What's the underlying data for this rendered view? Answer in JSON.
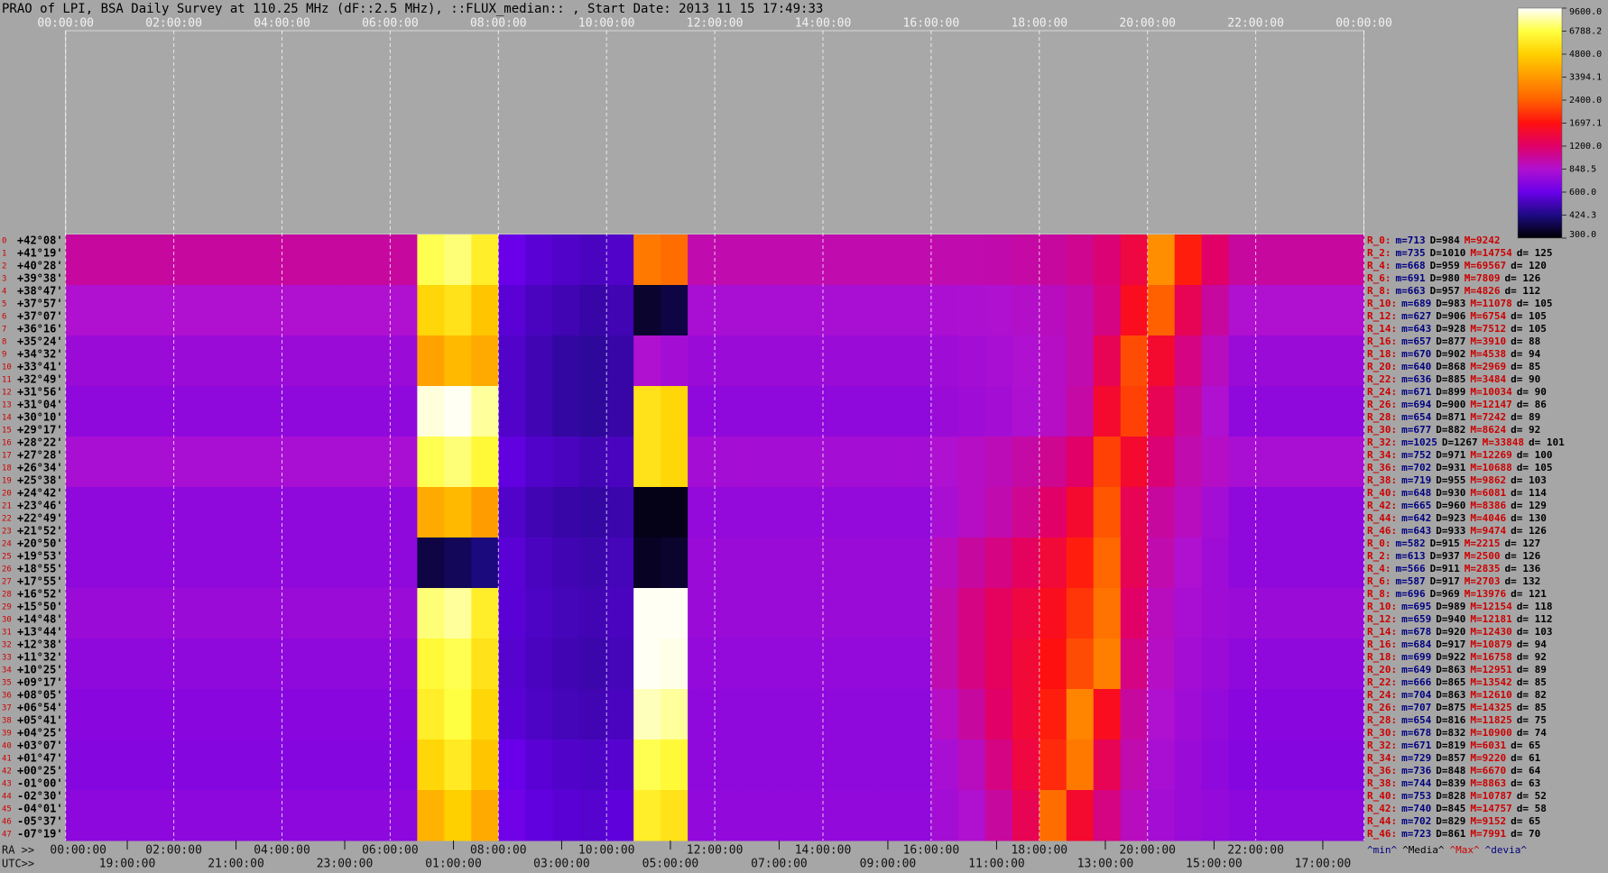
{
  "chart_data": {
    "type": "heatmap",
    "title": "PRAO of LPI, BSA Daily Survey at 110.25 MHz (dF::2.5 MHz), ::FLUX_median:: , Start Date: 2013 11 15 17:49:33",
    "xlim": [
      0,
      24
    ],
    "xticks": [
      {
        "value": 0,
        "label": "00:00:00"
      },
      {
        "value": 2,
        "label": "02:00:00"
      },
      {
        "value": 4,
        "label": "04:00:00"
      },
      {
        "value": 6,
        "label": "06:00:00"
      },
      {
        "value": 8,
        "label": "08:00:00"
      },
      {
        "value": 10,
        "label": "10:00:00"
      },
      {
        "value": 12,
        "label": "12:00:00"
      },
      {
        "value": 14,
        "label": "14:00:00"
      },
      {
        "value": 16,
        "label": "16:00:00"
      },
      {
        "value": 18,
        "label": "18:00:00"
      },
      {
        "value": 20,
        "label": "20:00:00"
      },
      {
        "value": 22,
        "label": "22:00:00"
      },
      {
        "value": 24,
        "label": "00:00:00"
      }
    ],
    "grid": true,
    "ra_label": "RA >>",
    "ra_ticks": [
      {
        "value": 0,
        "label": "00:00:00"
      },
      {
        "value": 2,
        "label": "02:00:00"
      },
      {
        "value": 4,
        "label": "04:00:00"
      },
      {
        "value": 6,
        "label": "06:00:00"
      },
      {
        "value": 8,
        "label": "08:00:00"
      },
      {
        "value": 10,
        "label": "10:00:00"
      },
      {
        "value": 12,
        "label": "12:00:00"
      },
      {
        "value": 14,
        "label": "14:00:00"
      },
      {
        "value": 16,
        "label": "16:00:00"
      },
      {
        "value": 18,
        "label": "18:00:00"
      },
      {
        "value": 20,
        "label": "20:00:00"
      },
      {
        "value": 22,
        "label": "22:00:00"
      }
    ],
    "utc_label": "UTC>>",
    "utc_ticks": [
      {
        "value": 1.14,
        "label": "19:00:00"
      },
      {
        "value": 3.15,
        "label": "21:00:00"
      },
      {
        "value": 5.16,
        "label": "23:00:00"
      },
      {
        "value": 7.17,
        "label": "01:00:00"
      },
      {
        "value": 9.17,
        "label": "03:00:00"
      },
      {
        "value": 11.18,
        "label": "05:00:00"
      },
      {
        "value": 13.19,
        "label": "07:00:00"
      },
      {
        "value": 15.2,
        "label": "09:00:00"
      },
      {
        "value": 17.21,
        "label": "11:00:00"
      },
      {
        "value": 19.22,
        "label": "13:00:00"
      },
      {
        "value": 21.23,
        "label": "15:00:00"
      },
      {
        "value": 23.24,
        "label": "17:00:00"
      }
    ],
    "rows": [
      [
        "0",
        "+42°08'"
      ],
      [
        "1",
        "+41°19'"
      ],
      [
        "2",
        "+40°28'"
      ],
      [
        "3",
        "+39°38'"
      ],
      [
        "4",
        "+38°47'"
      ],
      [
        "5",
        "+37°57'"
      ],
      [
        "6",
        "+37°07'"
      ],
      [
        "7",
        "+36°16'"
      ],
      [
        "8",
        "+35°24'"
      ],
      [
        "9",
        "+34°32'"
      ],
      [
        "10",
        "+33°41'"
      ],
      [
        "11",
        "+32°49'"
      ],
      [
        "12",
        "+31°56'"
      ],
      [
        "13",
        "+31°04'"
      ],
      [
        "14",
        "+30°10'"
      ],
      [
        "15",
        "+29°17'"
      ],
      [
        "16",
        "+28°22'"
      ],
      [
        "17",
        "+27°28'"
      ],
      [
        "18",
        "+26°34'"
      ],
      [
        "19",
        "+25°38'"
      ],
      [
        "20",
        "+24°42'"
      ],
      [
        "21",
        "+23°46'"
      ],
      [
        "22",
        "+22°49'"
      ],
      [
        "23",
        "+21°52'"
      ],
      [
        "24",
        "+20°50'"
      ],
      [
        "25",
        "+19°53'"
      ],
      [
        "26",
        "+18°55'"
      ],
      [
        "27",
        "+17°55'"
      ],
      [
        "28",
        "+16°52'"
      ],
      [
        "29",
        "+15°50'"
      ],
      [
        "30",
        "+14°48'"
      ],
      [
        "31",
        "+13°44'"
      ],
      [
        "32",
        "+12°38'"
      ],
      [
        "33",
        "+11°32'"
      ],
      [
        "34",
        "+10°25'"
      ],
      [
        "35",
        "+09°17'"
      ],
      [
        "36",
        "+08°05'"
      ],
      [
        "37",
        "+06°54'"
      ],
      [
        "38",
        "+05°41'"
      ],
      [
        "39",
        "+04°25'"
      ],
      [
        "40",
        "+03°07'"
      ],
      [
        "41",
        "+01°47'"
      ],
      [
        "42",
        "+00°25'"
      ],
      [
        "43",
        "-01°00'"
      ],
      [
        "44",
        "-02°30'"
      ],
      [
        "45",
        "-04°01'"
      ],
      [
        "46",
        "-05°37'"
      ],
      [
        "47",
        "-07°19'"
      ]
    ],
    "values": [
      [
        1000,
        1000,
        1000,
        1000,
        1000,
        1000,
        1000,
        1000,
        1000,
        1000,
        1000,
        1000,
        1000,
        7000,
        7500,
        6000,
        600,
        560,
        540,
        520,
        540,
        2800,
        2600,
        950,
        950,
        950,
        950,
        950,
        950,
        950,
        950,
        950,
        950,
        950,
        960,
        980,
        1000,
        1050,
        1150,
        1400,
        3200,
        1800,
        1200,
        1000,
        1000,
        1000,
        1000,
        1000
      ],
      [
        850,
        850,
        850,
        850,
        850,
        850,
        850,
        850,
        850,
        850,
        850,
        850,
        850,
        5000,
        5500,
        4500,
        560,
        520,
        500,
        480,
        500,
        340,
        360,
        820,
        820,
        820,
        820,
        820,
        820,
        820,
        820,
        820,
        830,
        840,
        850,
        870,
        900,
        950,
        1100,
        1600,
        2400,
        1300,
        1000,
        850,
        850,
        850,
        850,
        850
      ],
      [
        760,
        760,
        760,
        760,
        760,
        760,
        760,
        760,
        760,
        760,
        760,
        760,
        760,
        3600,
        4200,
        3800,
        540,
        500,
        470,
        460,
        480,
        850,
        800,
        760,
        760,
        760,
        760,
        760,
        760,
        760,
        760,
        760,
        780,
        800,
        820,
        850,
        880,
        950,
        1300,
        2200,
        1500,
        1100,
        900,
        760,
        760,
        760,
        760,
        760
      ],
      [
        720,
        720,
        720,
        720,
        720,
        720,
        720,
        720,
        720,
        720,
        720,
        720,
        720,
        9000,
        9400,
        8000,
        540,
        500,
        470,
        460,
        480,
        5500,
        5000,
        720,
        720,
        720,
        720,
        720,
        720,
        720,
        720,
        720,
        760,
        780,
        800,
        840,
        880,
        980,
        1500,
        2100,
        1300,
        1000,
        850,
        720,
        720,
        720,
        720,
        720
      ],
      [
        820,
        820,
        820,
        820,
        820,
        820,
        820,
        820,
        820,
        820,
        820,
        820,
        820,
        7000,
        7500,
        6500,
        580,
        540,
        520,
        500,
        520,
        5500,
        5000,
        800,
        800,
        800,
        800,
        800,
        800,
        800,
        800,
        800,
        850,
        880,
        920,
        980,
        1050,
        1200,
        2100,
        1500,
        1150,
        950,
        880,
        820,
        820,
        820,
        820,
        820
      ],
      [
        720,
        720,
        720,
        720,
        720,
        720,
        720,
        720,
        720,
        720,
        720,
        720,
        720,
        3800,
        4200,
        3500,
        540,
        500,
        480,
        470,
        490,
        320,
        320,
        740,
        740,
        740,
        740,
        740,
        740,
        740,
        740,
        740,
        820,
        880,
        950,
        1050,
        1200,
        1500,
        2300,
        1300,
        1000,
        900,
        800,
        720,
        720,
        720,
        720,
        720
      ],
      [
        720,
        720,
        720,
        720,
        720,
        720,
        720,
        720,
        720,
        720,
        720,
        720,
        720,
        360,
        380,
        420,
        560,
        520,
        500,
        490,
        510,
        330,
        340,
        760,
        760,
        760,
        760,
        760,
        760,
        760,
        760,
        760,
        900,
        1000,
        1100,
        1250,
        1450,
        1800,
        2500,
        1300,
        950,
        850,
        780,
        720,
        720,
        720,
        720,
        720
      ],
      [
        760,
        760,
        760,
        760,
        760,
        760,
        760,
        760,
        760,
        760,
        760,
        760,
        760,
        7500,
        8000,
        6000,
        560,
        530,
        510,
        500,
        520,
        9400,
        9400,
        760,
        760,
        760,
        760,
        760,
        760,
        760,
        760,
        760,
        950,
        1100,
        1250,
        1400,
        1600,
        2000,
        2700,
        1200,
        900,
        820,
        780,
        760,
        760,
        760,
        760,
        760
      ],
      [
        720,
        720,
        720,
        720,
        720,
        720,
        720,
        720,
        720,
        720,
        720,
        720,
        720,
        6500,
        7000,
        5500,
        550,
        520,
        500,
        490,
        510,
        9400,
        9200,
        740,
        740,
        740,
        740,
        740,
        740,
        740,
        740,
        740,
        950,
        1100,
        1250,
        1450,
        1700,
        2200,
        2900,
        1100,
        880,
        800,
        760,
        720,
        720,
        720,
        720,
        720
      ],
      [
        700,
        700,
        700,
        700,
        700,
        700,
        700,
        700,
        700,
        700,
        700,
        700,
        700,
        6000,
        6800,
        5000,
        560,
        530,
        510,
        500,
        520,
        8500,
        8000,
        720,
        720,
        720,
        720,
        720,
        720,
        720,
        720,
        720,
        880,
        1000,
        1200,
        1450,
        1800,
        3000,
        1600,
        1000,
        850,
        780,
        740,
        700,
        700,
        700,
        700,
        700
      ],
      [
        690,
        690,
        690,
        690,
        690,
        690,
        690,
        690,
        690,
        690,
        690,
        690,
        690,
        5000,
        5800,
        4500,
        600,
        560,
        540,
        530,
        550,
        7000,
        6500,
        720,
        720,
        720,
        720,
        720,
        720,
        720,
        720,
        720,
        820,
        900,
        1100,
        1400,
        1900,
        2800,
        1300,
        950,
        820,
        760,
        720,
        690,
        690,
        690,
        690,
        690
      ],
      [
        710,
        710,
        710,
        710,
        710,
        710,
        710,
        710,
        710,
        710,
        710,
        710,
        710,
        4000,
        4800,
        3800,
        620,
        580,
        560,
        550,
        570,
        6000,
        5500,
        730,
        730,
        730,
        730,
        730,
        730,
        730,
        730,
        730,
        800,
        850,
        1000,
        1300,
        2600,
        1500,
        1100,
        900,
        800,
        760,
        740,
        710,
        710,
        710,
        710,
        710
      ]
    ],
    "clim": [
      300,
      9600
    ],
    "log_scale": true,
    "colormap": [
      "#000000",
      "#1c0a82",
      "#6a00ea",
      "#b010d0",
      "#e00068",
      "#ff1010",
      "#ff6000",
      "#ff9800",
      "#ffd000",
      "#ffff40",
      "#ffffff"
    ],
    "cticks": [
      {
        "value": 9600,
        "label": "9600.0"
      },
      {
        "value": 6788.2,
        "label": "6788.2"
      },
      {
        "value": 4800,
        "label": "4800.0"
      },
      {
        "value": 3394.1,
        "label": "3394.1"
      },
      {
        "value": 2400,
        "label": "2400.0"
      },
      {
        "value": 1697.1,
        "label": "1697.1"
      },
      {
        "value": 1200,
        "label": "1200.0"
      },
      {
        "value": 848.5,
        "label": "848.5"
      },
      {
        "value": 600,
        "label": "600.0"
      },
      {
        "value": 424.3,
        "label": "424.3"
      },
      {
        "value": 300,
        "label": "300.0"
      }
    ],
    "stats_colors": [
      "#cc0000",
      "#000080",
      "#000000",
      "#cc0000",
      "#000000"
    ],
    "stats": [
      [
        "R_0:",
        "m=713",
        "D=984",
        "M=9242"
      ],
      [
        "R_2:",
        "m=735",
        "D=1010",
        "M=14754",
        "d= 125"
      ],
      [
        "R_4:",
        "m=668",
        "D=959",
        "M=69567",
        "d= 120"
      ],
      [
        "R_6:",
        "m=691",
        "D=980",
        "M=7809",
        "d= 126"
      ],
      [
        "R_8:",
        "m=663",
        "D=957",
        "M=4826",
        "d= 112"
      ],
      [
        "R_10:",
        "m=689",
        "D=983",
        "M=11078",
        "d= 105"
      ],
      [
        "R_12:",
        "m=627",
        "D=906",
        "M=6754",
        "d= 105"
      ],
      [
        "R_14:",
        "m=643",
        "D=928",
        "M=7512",
        "d= 105"
      ],
      [
        "R_16:",
        "m=657",
        "D=877",
        "M=3910",
        "d= 88"
      ],
      [
        "R_18:",
        "m=670",
        "D=902",
        "M=4538",
        "d= 94"
      ],
      [
        "R_20:",
        "m=640",
        "D=868",
        "M=2969",
        "d= 85"
      ],
      [
        "R_22:",
        "m=636",
        "D=885",
        "M=3484",
        "d= 90"
      ],
      [
        "R_24:",
        "m=671",
        "D=899",
        "M=10034",
        "d= 90"
      ],
      [
        "R_26:",
        "m=694",
        "D=900",
        "M=12147",
        "d= 86"
      ],
      [
        "R_28:",
        "m=654",
        "D=871",
        "M=7242",
        "d= 89"
      ],
      [
        "R_30:",
        "m=677",
        "D=882",
        "M=8624",
        "d= 92"
      ],
      [
        "R_32:",
        "m=1025",
        "D=1267",
        "M=33848",
        "d= 101"
      ],
      [
        "R_34:",
        "m=752",
        "D=971",
        "M=12269",
        "d= 100"
      ],
      [
        "R_36:",
        "m=702",
        "D=931",
        "M=10688",
        "d= 105"
      ],
      [
        "R_38:",
        "m=719",
        "D=955",
        "M=9862",
        "d= 103"
      ],
      [
        "R_40:",
        "m=648",
        "D=930",
        "M=6081",
        "d= 114"
      ],
      [
        "R_42:",
        "m=665",
        "D=960",
        "M=8386",
        "d= 129"
      ],
      [
        "R_44:",
        "m=642",
        "D=923",
        "M=4046",
        "d= 130"
      ],
      [
        "R_46:",
        "m=643",
        "D=933",
        "M=9474",
        "d= 126"
      ],
      [
        "R_0:",
        "m=582",
        "D=915",
        "M=2215",
        "d= 127"
      ],
      [
        "R_2:",
        "m=613",
        "D=937",
        "M=2500",
        "d= 126"
      ],
      [
        "R_4:",
        "m=566",
        "D=911",
        "M=2835",
        "d= 136"
      ],
      [
        "R_6:",
        "m=587",
        "D=917",
        "M=2703",
        "d= 132"
      ],
      [
        "R_8:",
        "m=696",
        "D=969",
        "M=13976",
        "d= 121"
      ],
      [
        "R_10:",
        "m=695",
        "D=989",
        "M=12154",
        "d= 118"
      ],
      [
        "R_12:",
        "m=659",
        "D=940",
        "M=12181",
        "d= 112"
      ],
      [
        "R_14:",
        "m=678",
        "D=920",
        "M=12430",
        "d= 103"
      ],
      [
        "R_16:",
        "m=684",
        "D=917",
        "M=10879",
        "d= 94"
      ],
      [
        "R_18:",
        "m=699",
        "D=922",
        "M=16758",
        "d= 92"
      ],
      [
        "R_20:",
        "m=649",
        "D=863",
        "M=12951",
        "d= 89"
      ],
      [
        "R_22:",
        "m=666",
        "D=865",
        "M=13542",
        "d= 85"
      ],
      [
        "R_24:",
        "m=704",
        "D=863",
        "M=12610",
        "d= 82"
      ],
      [
        "R_26:",
        "m=707",
        "D=875",
        "M=14325",
        "d= 85"
      ],
      [
        "R_28:",
        "m=654",
        "D=816",
        "M=11825",
        "d= 75"
      ],
      [
        "R_30:",
        "m=678",
        "D=832",
        "M=10900",
        "d= 74"
      ],
      [
        "R_32:",
        "m=671",
        "D=819",
        "M=6031",
        "d= 65"
      ],
      [
        "R_34:",
        "m=729",
        "D=857",
        "M=9220",
        "d= 61"
      ],
      [
        "R_36:",
        "m=736",
        "D=848",
        "M=6670",
        "d= 64"
      ],
      [
        "R_38:",
        "m=744",
        "D=839",
        "M=8863",
        "d= 63"
      ],
      [
        "R_40:",
        "m=753",
        "D=828",
        "M=10787",
        "d= 52"
      ],
      [
        "R_42:",
        "m=740",
        "D=845",
        "M=14757",
        "d= 58"
      ],
      [
        "R_44:",
        "m=702",
        "D=829",
        "M=9152",
        "d= 65"
      ],
      [
        "R_46:",
        "m=723",
        "D=861",
        "M=7991",
        "d= 70"
      ]
    ],
    "stats_footer": [
      "^min^",
      "^Media^",
      "^Max^",
      "^devia^"
    ],
    "footer_colors": [
      "#000080",
      "#000000",
      "#cc0000",
      "#000080"
    ]
  }
}
